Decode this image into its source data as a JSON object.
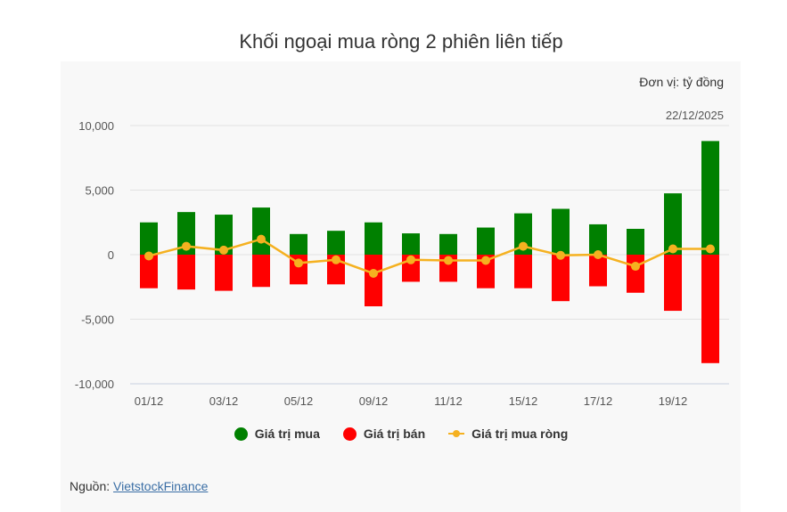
{
  "title": "Khối ngoại mua ròng 2 phiên liên tiếp",
  "unit_label": "Đơn vị: tỷ đồng",
  "date_label": "22/12/2025",
  "source": {
    "prefix": "Nguồn: ",
    "link_text": "VietstockFinance"
  },
  "colors": {
    "buy": "#008000",
    "sell": "#ff0000",
    "net": "#f5b120"
  },
  "chart_data": {
    "type": "bar",
    "categories": [
      "01/12",
      "02/12",
      "03/12",
      "04/12",
      "05/12",
      "08/12",
      "09/12",
      "10/12",
      "11/12",
      "12/12",
      "15/12",
      "16/12",
      "17/12",
      "18/12",
      "19/12",
      "22/12"
    ],
    "x_tick_labels": [
      "01/12",
      "03/12",
      "05/12",
      "09/12",
      "11/12",
      "15/12",
      "17/12",
      "19/12"
    ],
    "series": [
      {
        "name": "Giá trị mua",
        "type": "bar",
        "color": "#008000",
        "values": [
          2500,
          3300,
          3100,
          3650,
          1600,
          1850,
          2500,
          1650,
          1600,
          2100,
          3200,
          3550,
          2350,
          2000,
          4750,
          8800
        ]
      },
      {
        "name": "Giá trị bán",
        "type": "bar",
        "color": "#ff0000",
        "values": [
          -2600,
          -2700,
          -2800,
          -2500,
          -2300,
          -2300,
          -4000,
          -2100,
          -2100,
          -2600,
          -2600,
          -3600,
          -2450,
          -2950,
          -4350,
          -8400
        ]
      },
      {
        "name": "Giá trị mua ròng",
        "type": "line",
        "color": "#f5b120",
        "values": [
          -100,
          650,
          350,
          1200,
          -650,
          -400,
          -1450,
          -400,
          -450,
          -450,
          650,
          -50,
          0,
          -900,
          450,
          450
        ]
      }
    ],
    "y_ticks": [
      10000,
      5000,
      0,
      -5000,
      -10000
    ],
    "y_tick_labels": [
      "10,000",
      "5,000",
      "0",
      "-5,000",
      "-10,000"
    ],
    "ylim": [
      -10000,
      10000
    ],
    "grid": true,
    "legend_position": "bottom"
  }
}
